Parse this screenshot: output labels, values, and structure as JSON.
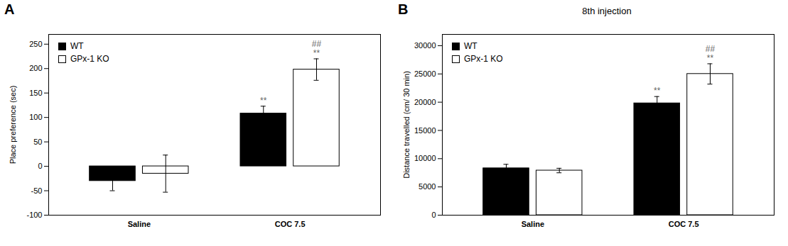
{
  "chart_data": [
    {
      "type": "bar",
      "label": "A",
      "ylabel": "Place preference (sec)",
      "categories": [
        "Saline",
        "COC 7.5"
      ],
      "series": [
        {
          "name": "WT",
          "color": "#000000",
          "values": [
            -30,
            108
          ],
          "errors": [
            20,
            15
          ]
        },
        {
          "name": "GPx-1 KO",
          "color": "#ffffff",
          "values": [
            -15,
            198
          ],
          "errors": [
            38,
            22
          ]
        }
      ],
      "ylim": [
        -100,
        270
      ],
      "yticks": [
        -100,
        -50,
        0,
        50,
        100,
        150,
        200,
        250
      ],
      "annotations": [
        {
          "category": "COC 7.5",
          "series": "WT",
          "text": "**"
        },
        {
          "category": "COC 7.5",
          "series": "GPx-1 KO",
          "text": "**"
        },
        {
          "category": "COC 7.5",
          "series": "GPx-1 KO",
          "text": "##"
        }
      ],
      "legend": "upper left",
      "grid": false
    },
    {
      "type": "bar",
      "label": "B",
      "title": "8th injection",
      "ylabel": "Distance travelled (cm/ 30 min)",
      "categories": [
        "Saline",
        "COC 7.5"
      ],
      "series": [
        {
          "name": "WT",
          "color": "#000000",
          "values": [
            8300,
            19800
          ],
          "errors": [
            700,
            1200
          ]
        },
        {
          "name": "GPx-1 KO",
          "color": "#ffffff",
          "values": [
            7900,
            25000
          ],
          "errors": [
            400,
            1800
          ]
        }
      ],
      "ylim": [
        0,
        32000
      ],
      "yticks": [
        0,
        5000,
        10000,
        15000,
        20000,
        25000,
        30000
      ],
      "annotations": [
        {
          "category": "COC 7.5",
          "series": "WT",
          "text": "**"
        },
        {
          "category": "COC 7.5",
          "series": "GPx-1 KO",
          "text": "**"
        },
        {
          "category": "COC 7.5",
          "series": "GPx-1 KO",
          "text": "##"
        }
      ],
      "legend": "upper left",
      "grid": false
    }
  ]
}
